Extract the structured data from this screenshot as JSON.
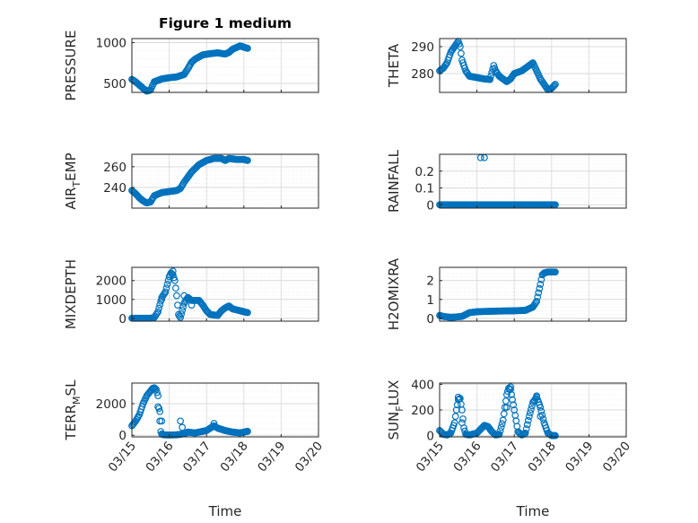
{
  "figure": {
    "title": "Figure 1 medium",
    "marker_color": "#0072bd"
  },
  "chart_data": [
    {
      "type": "scatter",
      "ylabel": "PRESSURE",
      "xlim": [
        0,
        5
      ],
      "ylim": [
        390,
        1050
      ],
      "yticks": [
        500,
        1000
      ],
      "grid": true,
      "keys": [
        [
          0,
          550
        ],
        [
          0.1,
          520
        ],
        [
          0.2,
          480
        ],
        [
          0.3,
          440
        ],
        [
          0.4,
          405
        ],
        [
          0.5,
          420
        ],
        [
          0.55,
          470
        ],
        [
          0.6,
          520
        ],
        [
          0.8,
          555
        ],
        [
          1.0,
          570
        ],
        [
          1.2,
          580
        ],
        [
          1.4,
          610
        ],
        [
          1.5,
          680
        ],
        [
          1.6,
          760
        ],
        [
          1.7,
          800
        ],
        [
          1.9,
          850
        ],
        [
          2.1,
          865
        ],
        [
          2.3,
          875
        ],
        [
          2.5,
          860
        ],
        [
          2.6,
          880
        ],
        [
          2.7,
          920
        ],
        [
          2.8,
          940
        ],
        [
          2.9,
          960
        ],
        [
          3.0,
          945
        ],
        [
          3.1,
          930
        ]
      ],
      "spikes": []
    },
    {
      "type": "scatter",
      "ylabel": "THETA",
      "xlim": [
        0,
        5
      ],
      "ylim": [
        273,
        293
      ],
      "yticks": [
        280,
        290
      ],
      "grid": true,
      "keys": [
        [
          0,
          281
        ],
        [
          0.1,
          282
        ],
        [
          0.2,
          284
        ],
        [
          0.3,
          288
        ],
        [
          0.45,
          291
        ],
        [
          0.5,
          292
        ],
        [
          0.55,
          290
        ],
        [
          0.6,
          285
        ],
        [
          0.7,
          281
        ],
        [
          0.8,
          279
        ],
        [
          1.0,
          278.5
        ],
        [
          1.2,
          278
        ],
        [
          1.35,
          277.8
        ],
        [
          1.45,
          283
        ],
        [
          1.5,
          281
        ],
        [
          1.6,
          279
        ],
        [
          1.8,
          277
        ],
        [
          1.9,
          278
        ],
        [
          2.0,
          280
        ],
        [
          2.2,
          281
        ],
        [
          2.4,
          283
        ],
        [
          2.5,
          284
        ],
        [
          2.6,
          281
        ],
        [
          2.7,
          278
        ],
        [
          2.8,
          276
        ],
        [
          2.9,
          274
        ],
        [
          3.0,
          274.5
        ],
        [
          3.1,
          276
        ]
      ],
      "spikes": []
    },
    {
      "type": "scatter",
      "ylabel": "AIR_TEMP",
      "ylabel_base": "AIR",
      "ylabel_sub": "T",
      "ylabel_tail": "EMP",
      "xlim": [
        0,
        5
      ],
      "ylim": [
        220,
        272
      ],
      "yticks": [
        240,
        260
      ],
      "grid": true,
      "keys": [
        [
          0,
          237
        ],
        [
          0.1,
          234
        ],
        [
          0.2,
          230
        ],
        [
          0.3,
          227
        ],
        [
          0.4,
          225
        ],
        [
          0.5,
          226
        ],
        [
          0.55,
          229
        ],
        [
          0.6,
          232
        ],
        [
          0.8,
          235
        ],
        [
          1.0,
          236
        ],
        [
          1.2,
          237
        ],
        [
          1.3,
          239
        ],
        [
          1.4,
          245
        ],
        [
          1.5,
          250
        ],
        [
          1.6,
          255
        ],
        [
          1.8,
          262
        ],
        [
          2.0,
          266
        ],
        [
          2.2,
          268
        ],
        [
          2.4,
          268
        ],
        [
          2.5,
          266
        ],
        [
          2.6,
          268
        ],
        [
          2.8,
          267
        ],
        [
          3.0,
          267
        ],
        [
          3.1,
          266
        ]
      ],
      "spikes": []
    },
    {
      "type": "scatter",
      "ylabel": "RAINFALL",
      "xlim": [
        0,
        5
      ],
      "ylim": [
        -0.02,
        0.3
      ],
      "yticks": [
        0,
        0.1,
        0.2
      ],
      "grid": true,
      "keys": [
        [
          0,
          0
        ],
        [
          3.1,
          0
        ]
      ],
      "spikes": [
        [
          1.1,
          0.28
        ],
        [
          1.2,
          0.28
        ]
      ]
    },
    {
      "type": "scatter",
      "ylabel": "MIXDEPTH",
      "xlim": [
        0,
        5
      ],
      "ylim": [
        -150,
        2700
      ],
      "yticks": [
        0,
        1000,
        2000
      ],
      "grid": true,
      "keys": [
        [
          0,
          5
        ],
        [
          0.5,
          5
        ],
        [
          0.6,
          40
        ],
        [
          0.7,
          350
        ],
        [
          0.8,
          1100
        ],
        [
          0.9,
          1400
        ],
        [
          0.95,
          1800
        ],
        [
          1.0,
          2200
        ],
        [
          1.05,
          2400
        ],
        [
          1.1,
          2300
        ],
        [
          1.15,
          2000
        ],
        [
          1.2,
          1200
        ],
        [
          1.25,
          200
        ],
        [
          1.3,
          40
        ],
        [
          1.4,
          800
        ],
        [
          1.5,
          1100
        ],
        [
          1.6,
          950
        ],
        [
          1.8,
          950
        ],
        [
          1.9,
          700
        ],
        [
          2.0,
          400
        ],
        [
          2.1,
          200
        ],
        [
          2.3,
          150
        ],
        [
          2.4,
          400
        ],
        [
          2.5,
          550
        ],
        [
          2.6,
          650
        ],
        [
          2.7,
          500
        ],
        [
          2.9,
          400
        ],
        [
          3.0,
          350
        ],
        [
          3.1,
          300
        ]
      ],
      "spikes": [
        [
          0.8,
          1000
        ],
        [
          1.4,
          1200
        ],
        [
          1.1,
          2500
        ],
        [
          1.6,
          700
        ]
      ]
    },
    {
      "type": "scatter",
      "ylabel": "H2OMIXRA",
      "xlim": [
        0,
        5
      ],
      "ylim": [
        -0.15,
        2.7
      ],
      "yticks": [
        0,
        1,
        2
      ],
      "grid": true,
      "keys": [
        [
          0,
          0.15
        ],
        [
          0.1,
          0.1
        ],
        [
          0.3,
          0.05
        ],
        [
          0.6,
          0.1
        ],
        [
          0.8,
          0.3
        ],
        [
          1.0,
          0.35
        ],
        [
          1.5,
          0.38
        ],
        [
          2.0,
          0.4
        ],
        [
          2.3,
          0.42
        ],
        [
          2.5,
          0.6
        ],
        [
          2.6,
          0.9
        ],
        [
          2.7,
          1.8
        ],
        [
          2.75,
          2.3
        ],
        [
          2.8,
          2.4
        ],
        [
          2.9,
          2.45
        ],
        [
          3.0,
          2.45
        ],
        [
          3.1,
          2.45
        ]
      ],
      "spikes": []
    },
    {
      "type": "scatter",
      "ylabel": "TERR_MSL",
      "ylabel_base": "TERR",
      "ylabel_sub": "M",
      "ylabel_tail": "SL",
      "xlim": [
        0,
        5
      ],
      "ylim": [
        -100,
        3300
      ],
      "yticks": [
        0,
        2000
      ],
      "grid": true,
      "keys": [
        [
          0,
          600
        ],
        [
          0.1,
          900
        ],
        [
          0.2,
          1300
        ],
        [
          0.3,
          2000
        ],
        [
          0.4,
          2500
        ],
        [
          0.5,
          2800
        ],
        [
          0.55,
          2950
        ],
        [
          0.6,
          3000
        ],
        [
          0.65,
          2900
        ],
        [
          0.7,
          2500
        ],
        [
          0.75,
          900
        ],
        [
          0.78,
          100
        ],
        [
          0.85,
          30
        ],
        [
          1.0,
          20
        ],
        [
          1.2,
          30
        ],
        [
          1.4,
          100
        ],
        [
          1.5,
          200
        ],
        [
          1.7,
          150
        ],
        [
          1.9,
          250
        ],
        [
          2.0,
          300
        ],
        [
          2.2,
          600
        ],
        [
          2.3,
          450
        ],
        [
          2.5,
          300
        ],
        [
          2.7,
          200
        ],
        [
          2.9,
          150
        ],
        [
          3.0,
          200
        ],
        [
          3.1,
          250
        ]
      ],
      "spikes": [
        [
          0.7,
          1800
        ],
        [
          0.75,
          1500
        ],
        [
          0.8,
          900
        ],
        [
          1.3,
          900
        ],
        [
          1.35,
          500
        ],
        [
          2.2,
          750
        ]
      ]
    },
    {
      "type": "scatter",
      "ylabel": "SUN_FLUX",
      "ylabel_base": "SUN",
      "ylabel_sub": "F",
      "ylabel_tail": "LUX",
      "xlim": [
        0,
        5
      ],
      "ylim": [
        -10,
        410
      ],
      "yticks": [
        0,
        200,
        400
      ],
      "grid": true,
      "keys": [
        [
          0,
          40
        ],
        [
          0.1,
          10
        ],
        [
          0.2,
          5
        ],
        [
          0.3,
          20
        ],
        [
          0.4,
          100
        ],
        [
          0.45,
          200
        ],
        [
          0.5,
          280
        ],
        [
          0.55,
          290
        ],
        [
          0.6,
          200
        ],
        [
          0.65,
          60
        ],
        [
          0.7,
          10
        ],
        [
          0.8,
          5
        ],
        [
          1.0,
          20
        ],
        [
          1.1,
          50
        ],
        [
          1.2,
          80
        ],
        [
          1.3,
          70
        ],
        [
          1.4,
          30
        ],
        [
          1.5,
          5
        ],
        [
          1.6,
          10
        ],
        [
          1.7,
          120
        ],
        [
          1.8,
          320
        ],
        [
          1.85,
          370
        ],
        [
          1.9,
          360
        ],
        [
          2.0,
          200
        ],
        [
          2.1,
          30
        ],
        [
          2.2,
          5
        ],
        [
          2.3,
          20
        ],
        [
          2.4,
          150
        ],
        [
          2.5,
          260
        ],
        [
          2.6,
          300
        ],
        [
          2.7,
          220
        ],
        [
          2.8,
          100
        ],
        [
          2.9,
          20
        ],
        [
          3.0,
          0
        ],
        [
          3.1,
          0
        ]
      ],
      "spikes": [
        [
          0.5,
          300
        ],
        [
          0.6,
          100
        ],
        [
          1.8,
          220
        ],
        [
          1.9,
          380
        ],
        [
          2.6,
          310
        ],
        [
          2.7,
          150
        ]
      ]
    }
  ],
  "x_axis": {
    "ticks": [
      "03/15",
      "03/16",
      "03/17",
      "03/18",
      "03/19",
      "03/20"
    ],
    "label": "Time"
  }
}
